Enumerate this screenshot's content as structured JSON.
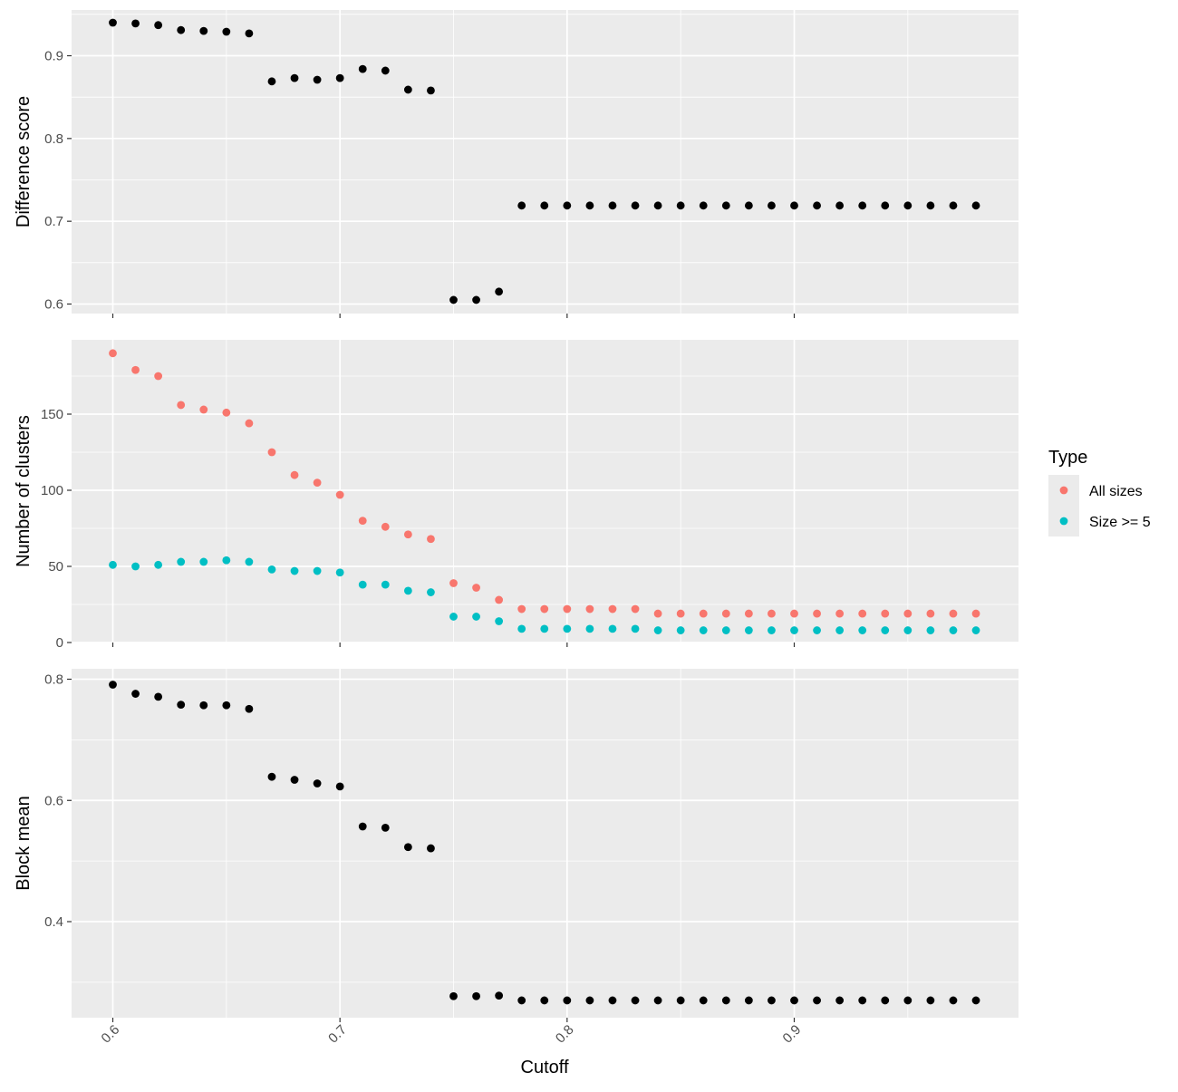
{
  "chart_data": {
    "type": "scatter",
    "xlabel": "Cutoff",
    "x_ticks": [
      0.6,
      0.7,
      0.8,
      0.9
    ],
    "x_tick_labels": [
      "0.6",
      "0.7",
      "0.8",
      "0.9"
    ],
    "x": [
      0.6,
      0.61,
      0.62,
      0.63,
      0.64,
      0.65,
      0.66,
      0.67,
      0.68,
      0.69,
      0.7,
      0.71,
      0.72,
      0.73,
      0.74,
      0.75,
      0.76,
      0.77,
      0.78,
      0.79,
      0.8,
      0.81,
      0.82,
      0.83,
      0.84,
      0.85,
      0.86,
      0.87,
      0.88,
      0.89,
      0.9,
      0.91,
      0.92,
      0.93,
      0.94,
      0.95,
      0.96,
      0.97,
      0.98
    ],
    "panels": [
      {
        "ylabel": "Difference score",
        "y_ticks": [
          0.6,
          0.7,
          0.8,
          0.9
        ],
        "y_tick_labels": [
          "0.6",
          "0.7",
          "0.8",
          "0.9"
        ],
        "series": [
          {
            "color": "#000000",
            "values": [
              0.94,
              0.939,
              0.937,
              0.931,
              0.93,
              0.929,
              0.927,
              0.869,
              0.873,
              0.871,
              0.873,
              0.884,
              0.882,
              0.859,
              0.858,
              0.605,
              0.605,
              0.615,
              0.719,
              0.719,
              0.719,
              0.719,
              0.719,
              0.719,
              0.719,
              0.719,
              0.719,
              0.719,
              0.719,
              0.719,
              0.719,
              0.719,
              0.719,
              0.719,
              0.719,
              0.719,
              0.719,
              0.719,
              0.719
            ]
          }
        ]
      },
      {
        "ylabel": "Number of clusters",
        "y_ticks": [
          0,
          50,
          100,
          150
        ],
        "y_tick_labels": [
          "0",
          "50",
          "100",
          "150"
        ],
        "series": [
          {
            "name": "All sizes",
            "color": "#F8766D",
            "values": [
              190,
              179,
              175,
              156,
              153,
              151,
              144,
              125,
              110,
              105,
              97,
              80,
              76,
              71,
              68,
              39,
              36,
              28,
              22,
              22,
              22,
              22,
              22,
              22,
              19,
              19,
              19,
              19,
              19,
              19,
              19,
              19,
              19,
              19,
              19,
              19,
              19,
              19,
              19
            ]
          },
          {
            "name": "Size >= 5",
            "color": "#00BFC4",
            "values": [
              51,
              50,
              51,
              53,
              53,
              54,
              53,
              48,
              47,
              47,
              46,
              38,
              38,
              34,
              33,
              17,
              17,
              14,
              9,
              9,
              9,
              9,
              9,
              9,
              8,
              8,
              8,
              8,
              8,
              8,
              8,
              8,
              8,
              8,
              8,
              8,
              8,
              8,
              8
            ]
          }
        ]
      },
      {
        "ylabel": "Block mean",
        "y_ticks": [
          0.4,
          0.6,
          0.8
        ],
        "y_tick_labels": [
          "0.4",
          "0.6",
          "0.8"
        ],
        "series": [
          {
            "color": "#000000",
            "values": [
              0.791,
              0.776,
              0.771,
              0.758,
              0.757,
              0.757,
              0.751,
              0.639,
              0.634,
              0.628,
              0.623,
              0.557,
              0.555,
              0.523,
              0.521,
              0.277,
              0.277,
              0.278,
              0.27,
              0.27,
              0.27,
              0.27,
              0.27,
              0.27,
              0.27,
              0.27,
              0.27,
              0.27,
              0.27,
              0.27,
              0.27,
              0.27,
              0.27,
              0.27,
              0.27,
              0.27,
              0.27,
              0.27,
              0.27
            ]
          }
        ]
      }
    ],
    "legend": {
      "title": "Type",
      "entries": [
        {
          "label": "All sizes",
          "color": "#F8766D"
        },
        {
          "label": "Size >= 5",
          "color": "#00BFC4"
        }
      ]
    }
  }
}
